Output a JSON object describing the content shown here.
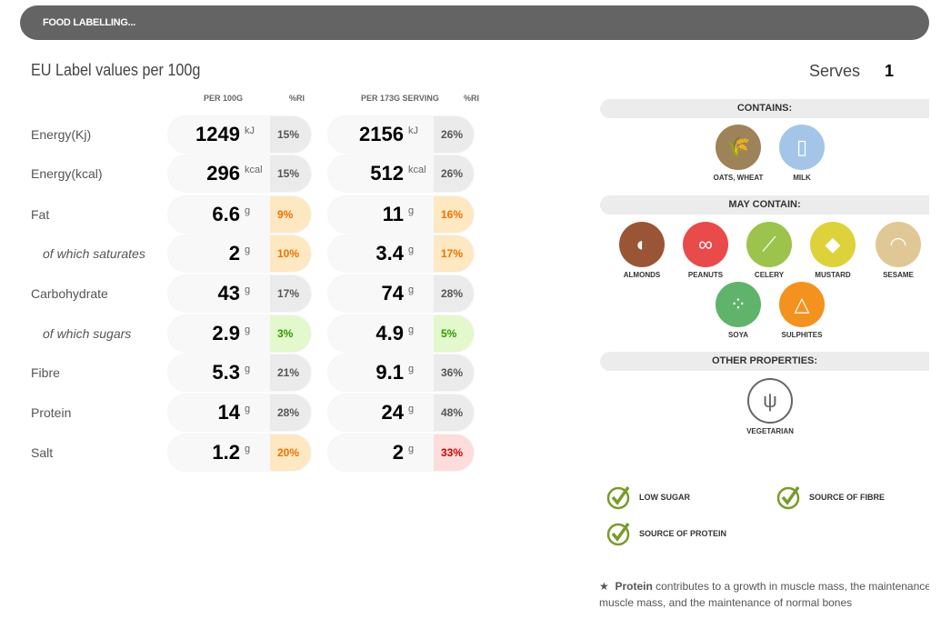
{
  "header": {
    "title": "FOOD LABELLING..."
  },
  "nutrition": {
    "title": "EU Label values per 100g",
    "col_per100": "PER 100G",
    "col_ri": "%RI",
    "col_serving": "PER 173G SERVING",
    "col_ri2": "%RI",
    "rows": [
      {
        "label": "Energy(Kj)",
        "sub": false,
        "v100": "1249",
        "unit": "kJ",
        "ri100": "15%",
        "lvl100": "grey",
        "vs": "2156",
        "ris": "26%",
        "lvls": "grey"
      },
      {
        "label": "Energy(kcal)",
        "sub": false,
        "v100": "296",
        "unit": "kcal",
        "ri100": "15%",
        "lvl100": "grey",
        "vs": "512",
        "ris": "26%",
        "lvls": "grey"
      },
      {
        "label": "Fat",
        "sub": false,
        "v100": "6.6",
        "unit": "g",
        "ri100": "9%",
        "lvl100": "orange",
        "vs": "11",
        "ris": "16%",
        "lvls": "orange"
      },
      {
        "label": "of which saturates",
        "sub": true,
        "v100": "2",
        "unit": "g",
        "ri100": "10%",
        "lvl100": "orange",
        "vs": "3.4",
        "ris": "17%",
        "lvls": "orange"
      },
      {
        "label": "Carbohydrate",
        "sub": false,
        "v100": "43",
        "unit": "g",
        "ri100": "17%",
        "lvl100": "grey",
        "vs": "74",
        "ris": "28%",
        "lvls": "grey"
      },
      {
        "label": "of which sugars",
        "sub": true,
        "v100": "2.9",
        "unit": "g",
        "ri100": "3%",
        "lvl100": "green",
        "vs": "4.9",
        "ris": "5%",
        "lvls": "green"
      },
      {
        "label": "Fibre",
        "sub": false,
        "v100": "5.3",
        "unit": "g",
        "ri100": "21%",
        "lvl100": "grey",
        "vs": "9.1",
        "ris": "36%",
        "lvls": "grey"
      },
      {
        "label": "Protein",
        "sub": false,
        "v100": "14",
        "unit": "g",
        "ri100": "28%",
        "lvl100": "grey",
        "vs": "24",
        "ris": "48%",
        "lvls": "grey"
      },
      {
        "label": "Salt",
        "sub": false,
        "v100": "1.2",
        "unit": "g",
        "ri100": "20%",
        "lvl100": "orange",
        "vs": "2",
        "ris": "33%",
        "lvls": "red"
      }
    ]
  },
  "levels": {
    "grey": {
      "bg": "#ebebeb",
      "fg": "#555555"
    },
    "orange": {
      "bg": "#fde8c2",
      "fg": "#f07000"
    },
    "green": {
      "bg": "#e3f8cc",
      "fg": "#2f9a00"
    },
    "red": {
      "bg": "#fddcdc",
      "fg": "#d40000"
    }
  },
  "serves": {
    "label": "Serves",
    "value": "1"
  },
  "contains": {
    "title": "CONTAINS:",
    "items": [
      {
        "label": "OATS, WHEAT",
        "icon": "wheat-icon",
        "color": "#9e8259",
        "glyph": "🌾"
      },
      {
        "label": "MILK",
        "icon": "milk-carton-icon",
        "color": "#a4c5e8",
        "glyph": "▯"
      }
    ]
  },
  "may_contain": {
    "title": "MAY CONTAIN:",
    "items": [
      {
        "label": "ALMONDS",
        "icon": "almond-icon",
        "color": "#9a5537",
        "glyph": "◐"
      },
      {
        "label": "PEANUTS",
        "icon": "peanut-icon",
        "color": "#e94a4a",
        "glyph": "∞"
      },
      {
        "label": "CELERY",
        "icon": "celery-icon",
        "color": "#9cc44c",
        "glyph": "⟋"
      },
      {
        "label": "MUSTARD",
        "icon": "mustard-icon",
        "color": "#ddd23a",
        "glyph": "◆"
      },
      {
        "label": "SESAME",
        "icon": "sesame-bun-icon",
        "color": "#e0c896",
        "glyph": "◠"
      },
      {
        "label": "SOYA",
        "icon": "soya-icon",
        "color": "#5fb36b",
        "glyph": "⁘"
      },
      {
        "label": "SULPHITES",
        "icon": "sulphites-flask-icon",
        "color": "#f4921f",
        "glyph": "△"
      }
    ]
  },
  "other": {
    "title": "OTHER PROPERTIES:",
    "items": [
      {
        "label": "VEGETARIAN",
        "icon": "vegetarian-fork-icon",
        "glyph": "ψ"
      }
    ]
  },
  "claims": [
    "LOW SUGAR",
    "SOURCE OF FIBRE",
    "SOURCE OF PROTEIN"
  ],
  "claim_color": "#7a9a2a",
  "note": {
    "star": "★",
    "bold": "Protein",
    "text1": " contributes to a growth in muscle mass, the maintenance of",
    "text2": "muscle mass, and the maintenance of normal bones"
  }
}
